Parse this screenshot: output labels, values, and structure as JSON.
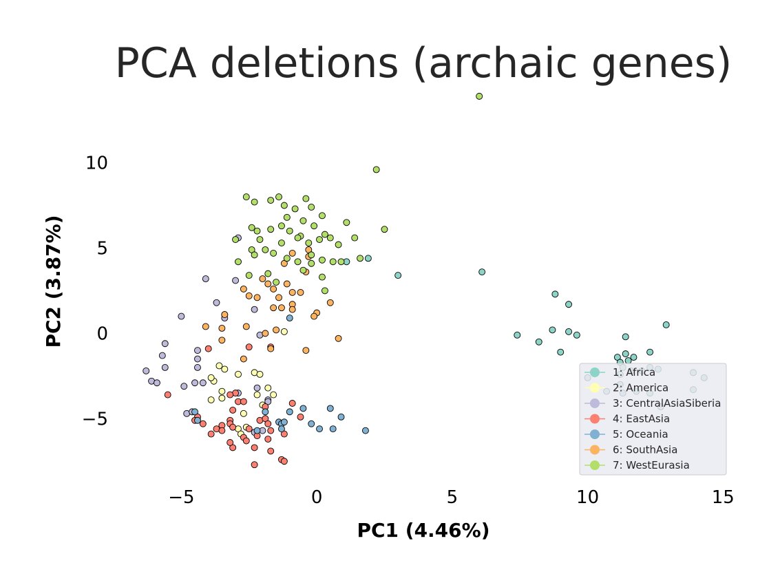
{
  "chart_data": {
    "type": "scatter",
    "title": "PCA deletions (archaic genes)",
    "xlabel": "PC1 (4.46%)",
    "ylabel": "PC2 (3.87%)",
    "xlim": [
      -7.5,
      15.5
    ],
    "ylim": [
      -8.7,
      14.5
    ],
    "xticks": [
      -5,
      0,
      5,
      10,
      15
    ],
    "yticks": [
      -5,
      0,
      5,
      10
    ],
    "xtick_labels": [
      "−5",
      "0",
      "5",
      "10",
      "15"
    ],
    "ytick_labels": [
      "−5",
      "0",
      "5",
      "10"
    ],
    "grid": false,
    "legend_position": "lower-right",
    "series": [
      {
        "name": "1: Africa",
        "color": "#8dd3c7",
        "points": [
          [
            1.1,
            4.2
          ],
          [
            1.9,
            4.4
          ],
          [
            3.0,
            3.4
          ],
          [
            6.1,
            3.6
          ],
          [
            8.8,
            2.3
          ],
          [
            9.3,
            1.7
          ],
          [
            8.7,
            0.2
          ],
          [
            9.3,
            0.1
          ],
          [
            9.6,
            -0.1
          ],
          [
            7.4,
            -0.1
          ],
          [
            8.2,
            -0.5
          ],
          [
            9.0,
            -1.1
          ],
          [
            11.4,
            -0.2
          ],
          [
            12.9,
            0.5
          ],
          [
            11.1,
            -1.4
          ],
          [
            11.4,
            -1.2
          ],
          [
            11.2,
            -1.7
          ],
          [
            11.5,
            -1.6
          ],
          [
            11.7,
            -1.4
          ],
          [
            12.3,
            -1.1
          ],
          [
            11.3,
            -2.0
          ],
          [
            11.6,
            -2.2
          ],
          [
            11.2,
            -2.4
          ],
          [
            12.0,
            -2.2
          ],
          [
            12.3,
            -2.0
          ],
          [
            12.6,
            -2.1
          ],
          [
            10.0,
            -2.6
          ],
          [
            10.7,
            -3.4
          ],
          [
            11.2,
            -3.0
          ],
          [
            11.3,
            -3.5
          ],
          [
            11.8,
            -3.4
          ],
          [
            12.3,
            -3.5
          ],
          [
            12.7,
            -4.3
          ],
          [
            13.9,
            -2.3
          ],
          [
            14.3,
            -2.6
          ],
          [
            13.9,
            -3.3
          ]
        ]
      },
      {
        "name": "2: America",
        "color": "#ffffb3",
        "points": [
          [
            -1.2,
            0.1
          ],
          [
            -3.6,
            -1.9
          ],
          [
            -3.4,
            -2.1
          ],
          [
            -3.8,
            -2.8
          ],
          [
            -3.9,
            -2.6
          ],
          [
            -3.5,
            -3.4
          ],
          [
            -3.9,
            -3.9
          ],
          [
            -3.5,
            -3.8
          ],
          [
            -2.9,
            -2.4
          ],
          [
            -2.3,
            -2.3
          ],
          [
            -2.1,
            -2.4
          ],
          [
            -2.2,
            -3.6
          ],
          [
            -1.8,
            -3.2
          ],
          [
            -1.6,
            -3.6
          ],
          [
            -2.0,
            -4.2
          ],
          [
            -2.7,
            -4.7
          ],
          [
            -2.6,
            -5.5
          ],
          [
            -2.9,
            -5.6
          ],
          [
            -2.8,
            -5.9
          ]
        ]
      },
      {
        "name": "3: CentralAsiaSiberia",
        "color": "#bebada",
        "points": [
          [
            -2.9,
            5.6
          ],
          [
            -4.1,
            3.2
          ],
          [
            -3.0,
            3.1
          ],
          [
            -3.7,
            1.8
          ],
          [
            -3.4,
            1.1
          ],
          [
            -3.4,
            0.9
          ],
          [
            -2.3,
            1.4
          ],
          [
            -5.0,
            1.0
          ],
          [
            -2.1,
            -0.1
          ],
          [
            -5.6,
            -0.6
          ],
          [
            -4.4,
            -1.0
          ],
          [
            -4.4,
            -1.5
          ],
          [
            -4.4,
            -2.0
          ],
          [
            -5.7,
            -1.3
          ],
          [
            -5.6,
            -2.0
          ],
          [
            -6.3,
            -2.2
          ],
          [
            -6.1,
            -2.8
          ],
          [
            -5.9,
            -2.9
          ],
          [
            -4.9,
            -3.1
          ],
          [
            -4.5,
            -2.9
          ],
          [
            -4.2,
            -2.9
          ],
          [
            -4.8,
            -4.7
          ],
          [
            -4.6,
            -4.6
          ],
          [
            -2.2,
            -3.2
          ],
          [
            -1.8,
            -3.9
          ],
          [
            -1.8,
            -4.0
          ],
          [
            -2.9,
            -3.5
          ],
          [
            -2.0,
            -5.7
          ],
          [
            -2.3,
            -5.8
          ]
        ]
      },
      {
        "name": "4: EastAsia",
        "color": "#fb8072",
        "points": [
          [
            -4.0,
            -0.9
          ],
          [
            -2.5,
            -0.8
          ],
          [
            -1.7,
            -0.8
          ],
          [
            -3.0,
            -3.5
          ],
          [
            -3.2,
            -3.6
          ],
          [
            -2.9,
            -4.0
          ],
          [
            -2.7,
            -4.0
          ],
          [
            -3.1,
            -4.5
          ],
          [
            -1.9,
            -4.3
          ],
          [
            -0.9,
            -4.1
          ],
          [
            -0.6,
            -4.9
          ],
          [
            -5.5,
            -3.6
          ],
          [
            -4.4,
            -4.9
          ],
          [
            -4.5,
            -5.1
          ],
          [
            -4.2,
            -5.3
          ],
          [
            -3.9,
            -5.9
          ],
          [
            -3.7,
            -5.6
          ],
          [
            -3.5,
            -5.4
          ],
          [
            -3.5,
            -5.7
          ],
          [
            -3.2,
            -5.1
          ],
          [
            -3.2,
            -5.3
          ],
          [
            -3.1,
            -5.5
          ],
          [
            -2.1,
            -5.1
          ],
          [
            -1.9,
            -5.0
          ],
          [
            -1.8,
            -5.3
          ],
          [
            -1.7,
            -5.7
          ],
          [
            -1.8,
            -6.2
          ],
          [
            -2.5,
            -5.6
          ],
          [
            -2.2,
            -6.0
          ],
          [
            -2.7,
            -6.1
          ],
          [
            -2.6,
            -6.3
          ],
          [
            -2.3,
            -6.7
          ],
          [
            -3.1,
            -6.7
          ],
          [
            -3.2,
            -6.4
          ],
          [
            -1.2,
            -5.9
          ],
          [
            -1.7,
            -6.9
          ],
          [
            -1.3,
            -7.4
          ],
          [
            -1.2,
            -7.5
          ],
          [
            -2.3,
            -7.7
          ]
        ]
      },
      {
        "name": "5: Oceania",
        "color": "#80b1d3",
        "points": [
          [
            -1.0,
            0.9
          ],
          [
            -4.5,
            -4.6
          ],
          [
            -4.4,
            -5.1
          ],
          [
            -2.2,
            -5.7
          ],
          [
            -1.9,
            -4.6
          ],
          [
            -1.4,
            -5.2
          ],
          [
            -1.3,
            -5.3
          ],
          [
            -1.2,
            -5.2
          ],
          [
            -1.3,
            -5.6
          ],
          [
            -1.0,
            -4.6
          ],
          [
            -0.5,
            -4.4
          ],
          [
            -0.2,
            -5.3
          ],
          [
            0.1,
            -5.6
          ],
          [
            0.5,
            -4.4
          ],
          [
            0.6,
            -5.6
          ],
          [
            0.9,
            -4.9
          ],
          [
            1.8,
            -5.7
          ]
        ]
      },
      {
        "name": "6: SouthAsia",
        "color": "#fdb462",
        "points": [
          [
            -1.2,
            4.1
          ],
          [
            -0.9,
            4.7
          ],
          [
            -0.3,
            4.5
          ],
          [
            -2.7,
            2.6
          ],
          [
            -2.5,
            2.2
          ],
          [
            -2.2,
            2.1
          ],
          [
            -2.0,
            3.2
          ],
          [
            -1.8,
            2.9
          ],
          [
            -1.6,
            2.6
          ],
          [
            -1.4,
            2.1
          ],
          [
            -1.1,
            2.9
          ],
          [
            -0.9,
            2.4
          ],
          [
            -0.6,
            2.4
          ],
          [
            -0.4,
            3.6
          ],
          [
            0.0,
            1.2
          ],
          [
            -0.1,
            1.0
          ],
          [
            0.5,
            1.8
          ],
          [
            -1.6,
            1.5
          ],
          [
            -1.3,
            1.5
          ],
          [
            -0.9,
            1.7
          ],
          [
            -0.9,
            1.4
          ],
          [
            -2.6,
            0.4
          ],
          [
            -1.5,
            0.2
          ],
          [
            -1.9,
            0.0
          ],
          [
            -3.4,
            1.1
          ],
          [
            -4.1,
            0.4
          ],
          [
            -3.5,
            0.3
          ],
          [
            -3.5,
            -0.4
          ],
          [
            -1.7,
            -0.9
          ],
          [
            -0.4,
            -1.0
          ],
          [
            0.8,
            -0.3
          ],
          [
            -2.7,
            -1.5
          ],
          [
            -0.3,
            4.9
          ]
        ]
      },
      {
        "name": "7: WestEurasia",
        "color": "#b3de69",
        "points": [
          [
            6.0,
            13.9
          ],
          [
            2.2,
            9.6
          ],
          [
            -2.6,
            8.0
          ],
          [
            -2.3,
            7.7
          ],
          [
            -1.7,
            7.8
          ],
          [
            -1.4,
            8.0
          ],
          [
            -1.2,
            7.5
          ],
          [
            -0.4,
            7.9
          ],
          [
            -0.2,
            7.4
          ],
          [
            -0.8,
            7.3
          ],
          [
            -1.1,
            6.8
          ],
          [
            -0.5,
            6.6
          ],
          [
            0.2,
            6.9
          ],
          [
            -1.3,
            6.3
          ],
          [
            -0.1,
            6.3
          ],
          [
            -2.4,
            6.2
          ],
          [
            -2.2,
            6.0
          ],
          [
            -1.7,
            6.1
          ],
          [
            -1.0,
            6.0
          ],
          [
            -0.6,
            5.7
          ],
          [
            0.3,
            5.8
          ],
          [
            1.1,
            6.5
          ],
          [
            -3.0,
            5.5
          ],
          [
            -2.1,
            5.5
          ],
          [
            -1.3,
            5.3
          ],
          [
            -0.7,
            5.6
          ],
          [
            -0.3,
            5.3
          ],
          [
            0.1,
            5.5
          ],
          [
            0.5,
            5.6
          ],
          [
            0.8,
            5.2
          ],
          [
            1.4,
            5.6
          ],
          [
            2.5,
            6.1
          ],
          [
            -2.9,
            4.2
          ],
          [
            -2.4,
            4.9
          ],
          [
            -1.9,
            4.9
          ],
          [
            -1.6,
            4.7
          ],
          [
            -1.1,
            4.4
          ],
          [
            -0.7,
            4.2
          ],
          [
            -0.2,
            4.6
          ],
          [
            0.2,
            4.3
          ],
          [
            0.6,
            4.2
          ],
          [
            0.9,
            4.2
          ],
          [
            1.6,
            4.4
          ],
          [
            -2.5,
            3.4
          ],
          [
            -1.8,
            3.5
          ],
          [
            -0.5,
            3.7
          ],
          [
            0.2,
            3.3
          ],
          [
            0.3,
            2.5
          ],
          [
            -2.3,
            4.6
          ],
          [
            -1.5,
            3.0
          ],
          [
            -0.2,
            4.1
          ]
        ]
      }
    ]
  }
}
